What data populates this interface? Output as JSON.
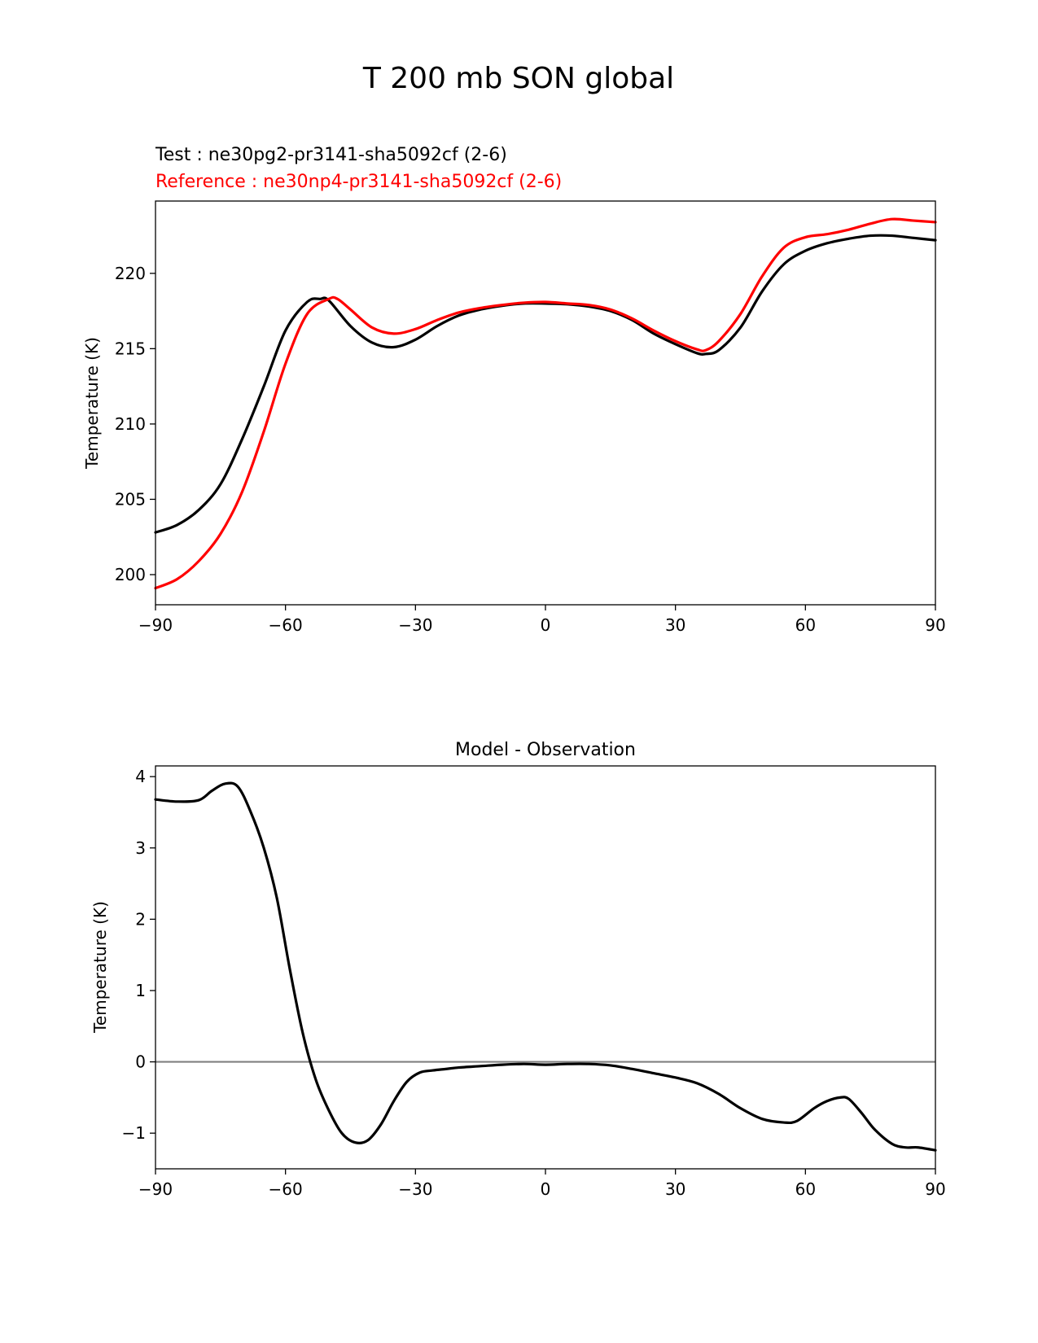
{
  "figure_title": "T 200 mb SON global",
  "chart_data": [
    {
      "type": "line",
      "title_lines": [
        {
          "text": "Test : ne30pg2-pr3141-sha5092cf (2-6)",
          "color": "#000000"
        },
        {
          "text": "Reference : ne30np4-pr3141-sha5092cf (2-6)",
          "color": "#ff0000"
        }
      ],
      "xlabel": "",
      "ylabel": "Temperature (K)",
      "xlim": [
        -90,
        90
      ],
      "ylim": [
        198.0,
        224.8
      ],
      "xticks": [
        -90,
        -60,
        -30,
        0,
        30,
        60,
        90
      ],
      "xtick_labels": [
        "−90",
        "−60",
        "−30",
        "0",
        "30",
        "60",
        "90"
      ],
      "yticks": [
        200,
        205,
        210,
        215,
        220
      ],
      "ytick_labels": [
        "200",
        "205",
        "210",
        "215",
        "220"
      ],
      "grid": false,
      "series": [
        {
          "color": "#000000",
          "x": [
            -90,
            -85,
            -80,
            -75,
            -70,
            -65,
            -60,
            -55,
            -52,
            -50,
            -45,
            -40,
            -35,
            -30,
            -25,
            -20,
            -15,
            -10,
            -5,
            0,
            5,
            10,
            15,
            20,
            25,
            30,
            35,
            37,
            40,
            45,
            50,
            55,
            60,
            65,
            70,
            75,
            80,
            85,
            90
          ],
          "y": [
            202.8,
            203.3,
            204.3,
            206.0,
            209.0,
            212.5,
            216.2,
            218.1,
            218.3,
            218.2,
            216.5,
            215.4,
            215.1,
            215.6,
            216.5,
            217.2,
            217.6,
            217.85,
            218.0,
            218.0,
            217.95,
            217.8,
            217.5,
            216.9,
            216.0,
            215.3,
            214.7,
            214.65,
            214.9,
            216.4,
            218.8,
            220.6,
            221.5,
            222.0,
            222.3,
            222.5,
            222.5,
            222.35,
            222.2
          ]
        },
        {
          "color": "#ff0000",
          "x": [
            -90,
            -85,
            -80,
            -75,
            -70,
            -65,
            -60,
            -55,
            -50,
            -48,
            -45,
            -40,
            -35,
            -30,
            -25,
            -20,
            -15,
            -10,
            -5,
            0,
            5,
            10,
            15,
            20,
            25,
            30,
            35,
            37,
            40,
            45,
            50,
            55,
            60,
            65,
            70,
            75,
            80,
            85,
            90
          ],
          "y": [
            199.1,
            199.7,
            200.9,
            202.7,
            205.5,
            209.5,
            214.0,
            217.3,
            218.3,
            218.3,
            217.6,
            216.4,
            216.0,
            216.3,
            216.9,
            217.4,
            217.7,
            217.9,
            218.05,
            218.1,
            218.0,
            217.9,
            217.6,
            217.0,
            216.2,
            215.5,
            214.95,
            214.9,
            215.5,
            217.3,
            219.8,
            221.7,
            222.4,
            222.6,
            222.9,
            223.3,
            223.6,
            223.5,
            223.4
          ]
        }
      ]
    },
    {
      "type": "line",
      "title": "Model - Observation",
      "xlabel": "",
      "ylabel": "Temperature (K)",
      "xlim": [
        -90,
        90
      ],
      "ylim": [
        -1.5,
        4.15
      ],
      "xticks": [
        -90,
        -60,
        -30,
        0,
        30,
        60,
        90
      ],
      "xtick_labels": [
        "−90",
        "−60",
        "−30",
        "0",
        "30",
        "60",
        "90"
      ],
      "yticks": [
        -1,
        0,
        1,
        2,
        3,
        4
      ],
      "ytick_labels": [
        "−1",
        "0",
        "1",
        "2",
        "3",
        "4"
      ],
      "grid": false,
      "reference_line": {
        "y": 0,
        "color": "#808080"
      },
      "series": [
        {
          "color": "#000000",
          "x": [
            -90,
            -85,
            -80,
            -77,
            -74,
            -71,
            -68,
            -65,
            -62,
            -59,
            -56,
            -53,
            -50,
            -47,
            -44,
            -41,
            -38,
            -35,
            -32,
            -29,
            -26,
            -23,
            -20,
            -15,
            -10,
            -5,
            0,
            5,
            10,
            15,
            20,
            25,
            30,
            35,
            40,
            45,
            50,
            55,
            58,
            62,
            65,
            68,
            70,
            73,
            76,
            80,
            83,
            86,
            90
          ],
          "y": [
            3.68,
            3.65,
            3.67,
            3.8,
            3.9,
            3.86,
            3.5,
            3.0,
            2.3,
            1.3,
            0.4,
            -0.25,
            -0.68,
            -1.0,
            -1.13,
            -1.1,
            -0.88,
            -0.55,
            -0.28,
            -0.15,
            -0.12,
            -0.1,
            -0.08,
            -0.06,
            -0.04,
            -0.03,
            -0.04,
            -0.03,
            -0.03,
            -0.05,
            -0.1,
            -0.16,
            -0.22,
            -0.3,
            -0.45,
            -0.65,
            -0.8,
            -0.85,
            -0.83,
            -0.65,
            -0.55,
            -0.5,
            -0.52,
            -0.72,
            -0.95,
            -1.15,
            -1.2,
            -1.2,
            -1.24
          ]
        }
      ]
    }
  ]
}
